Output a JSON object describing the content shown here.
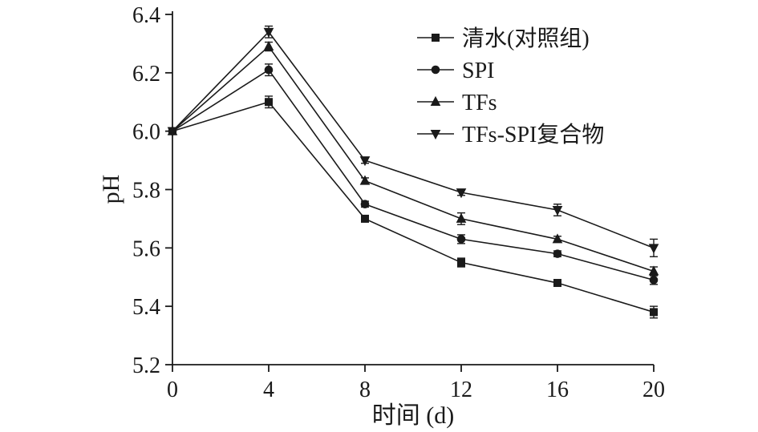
{
  "chart_data": {
    "type": "line",
    "title": "",
    "xlabel": "时间 (d)",
    "ylabel": "pH",
    "xlim": [
      0,
      20
    ],
    "ylim": [
      5.2,
      6.4
    ],
    "xticks": [
      0,
      4,
      8,
      12,
      16,
      20
    ],
    "yticks": [
      5.2,
      5.4,
      5.6,
      5.8,
      6.0,
      6.2,
      6.4
    ],
    "grid": false,
    "legend_position": "top-right-inside",
    "line_color": "#1a1a1a",
    "error_bars": true,
    "x": [
      0,
      4,
      8,
      12,
      16,
      20
    ],
    "series": [
      {
        "name": "清水(对照组)",
        "marker": "square",
        "values": [
          6.0,
          6.1,
          5.7,
          5.55,
          5.48,
          5.38
        ],
        "errors": [
          0.008,
          0.02,
          0.01,
          0.015,
          0.01,
          0.02
        ]
      },
      {
        "name": "SPI",
        "marker": "circle",
        "values": [
          6.0,
          6.21,
          5.75,
          5.63,
          5.58,
          5.49
        ],
        "errors": [
          0.008,
          0.02,
          0.01,
          0.015,
          0.01,
          0.015
        ]
      },
      {
        "name": "TFs",
        "marker": "triangle-up",
        "values": [
          6.0,
          6.29,
          5.83,
          5.7,
          5.63,
          5.52
        ],
        "errors": [
          0.008,
          0.015,
          0.01,
          0.02,
          0.01,
          0.015
        ]
      },
      {
        "name": "TFs-SPI复合物",
        "marker": "triangle-down",
        "values": [
          6.0,
          6.34,
          5.9,
          5.79,
          5.73,
          5.6
        ],
        "errors": [
          0.008,
          0.02,
          0.01,
          0.01,
          0.02,
          0.03
        ]
      }
    ]
  }
}
